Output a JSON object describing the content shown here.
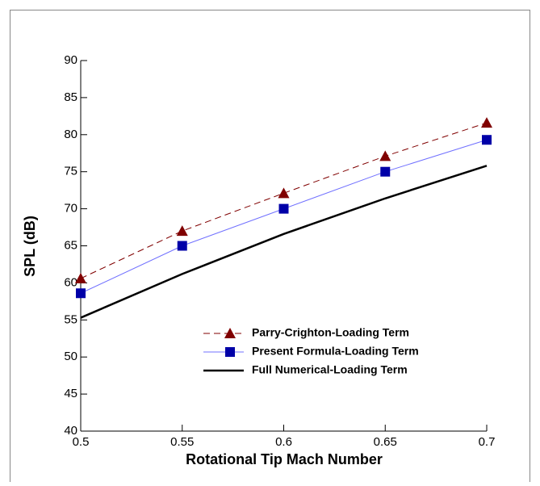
{
  "chart_data": {
    "type": "line",
    "x_label": "Rotational Tip Mach Number",
    "y_label": "SPL (dB)",
    "x": [
      0.5,
      0.55,
      0.6,
      0.65,
      0.7
    ],
    "series": [
      {
        "name": "Parry-Crighton-Loading Term",
        "color": "#800000",
        "line_color": "#800000",
        "dash": true,
        "marker": "triangle",
        "values": [
          60.6,
          67,
          72.1,
          77.1,
          81.6
        ]
      },
      {
        "name": "Present Formula-Loading Term",
        "color": "#0000a8",
        "line_color": "#7070ff",
        "dash": false,
        "marker": "square",
        "values": [
          58.6,
          65,
          70,
          75,
          79.3
        ]
      },
      {
        "name": "Full Numerical-Loading Term",
        "color": "#000000",
        "line_color": "#000000",
        "dash": false,
        "marker": null,
        "values": [
          55.3,
          61.2,
          66.6,
          71.4,
          75.8
        ]
      }
    ],
    "xlim": [
      0.5,
      0.7
    ],
    "xticks": [
      0.5,
      0.55,
      0.6,
      0.65,
      0.7
    ],
    "ylim": [
      40,
      90
    ],
    "yticks": [
      40,
      45,
      50,
      55,
      60,
      65,
      70,
      75,
      80,
      85,
      90
    ]
  }
}
